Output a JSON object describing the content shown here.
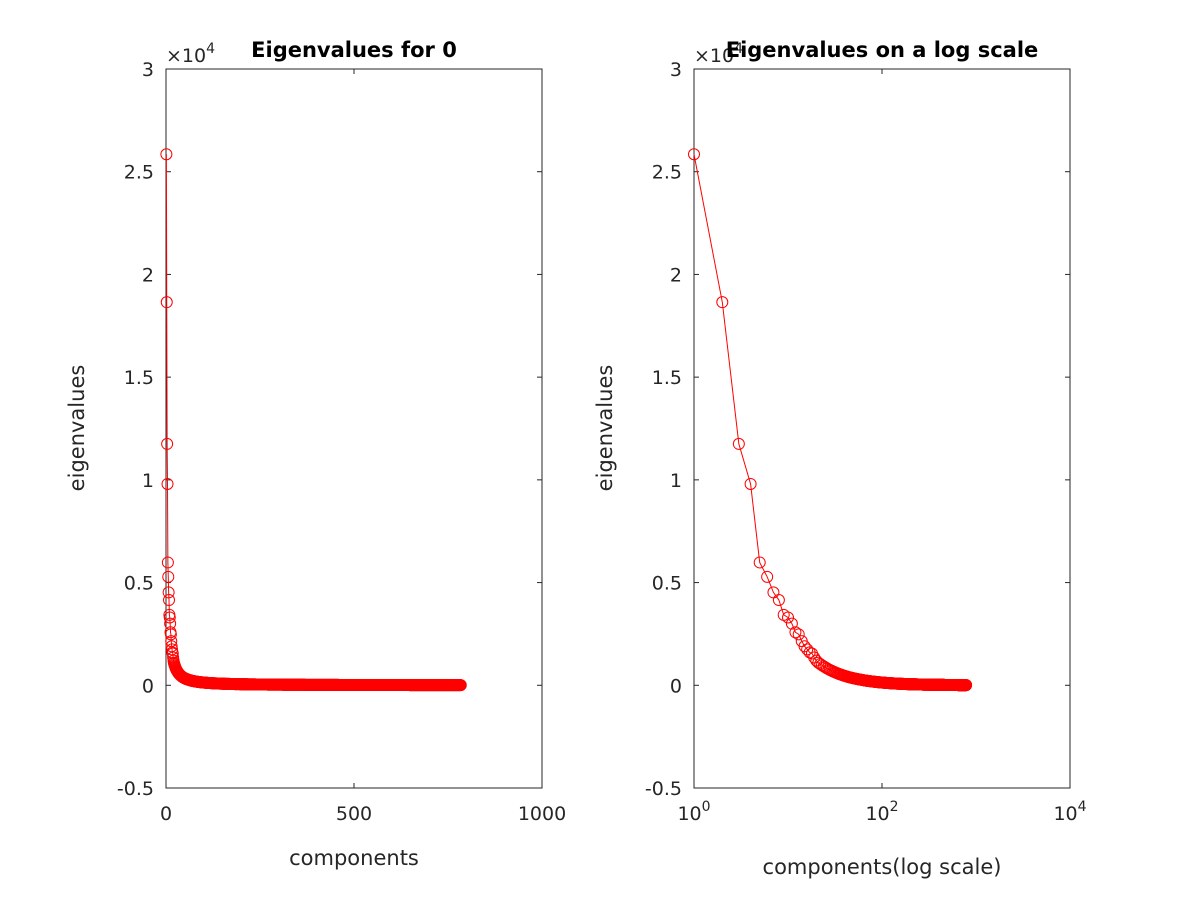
{
  "chart_data": [
    {
      "type": "line",
      "title": "Eigenvalues for 0",
      "xlabel": "components",
      "ylabel": "eigenvalues",
      "xscale": "linear",
      "xlim": [
        0,
        1000
      ],
      "ylim": [
        -0.5,
        3
      ],
      "y_multiplier_label": "×10",
      "y_multiplier_exponent": "4",
      "x_ticks": [
        0,
        500,
        1000
      ],
      "x_tick_labels": [
        "0",
        "500",
        "1000"
      ],
      "y_ticks": [
        -0.5,
        0,
        0.5,
        1,
        1.5,
        2,
        2.5,
        3
      ],
      "y_tick_labels": [
        "-0.5",
        "0",
        "0.5",
        "1",
        "1.5",
        "2",
        "2.5",
        "3"
      ],
      "marker": "circle",
      "color": "#ff0000",
      "grid": false,
      "n_points": 784
    },
    {
      "type": "line",
      "title": "Eigenvalues on a log scale",
      "xlabel": "components(log scale)",
      "ylabel": "eigenvalues",
      "xscale": "log",
      "xlim": [
        1,
        10000
      ],
      "ylim": [
        -0.5,
        3
      ],
      "y_multiplier_label": "×10",
      "y_multiplier_exponent": "4",
      "x_ticks": [
        1,
        100,
        10000
      ],
      "x_tick_base": [
        "10",
        "10",
        "10"
      ],
      "x_tick_exponents": [
        "0",
        "2",
        "4"
      ],
      "y_ticks": [
        -0.5,
        0,
        0.5,
        1,
        1.5,
        2,
        2.5,
        3
      ],
      "y_tick_labels": [
        "-0.5",
        "0",
        "0.5",
        "1",
        "1.5",
        "2",
        "2.5",
        "3"
      ],
      "marker": "circle",
      "color": "#ff0000",
      "grid": false,
      "n_points": 784
    }
  ],
  "series": {
    "name": "",
    "leading_values": [
      2.585,
      1.865,
      1.175,
      0.98,
      0.598,
      0.528,
      0.452,
      0.415,
      0.343,
      0.33,
      0.3,
      0.258,
      0.248,
      0.215,
      0.19,
      0.175,
      0.16,
      0.155,
      0.135,
      0.12
    ],
    "tail": {
      "start_value": 0.11,
      "decay_exponent": 1.35,
      "floor": 0.002
    }
  }
}
